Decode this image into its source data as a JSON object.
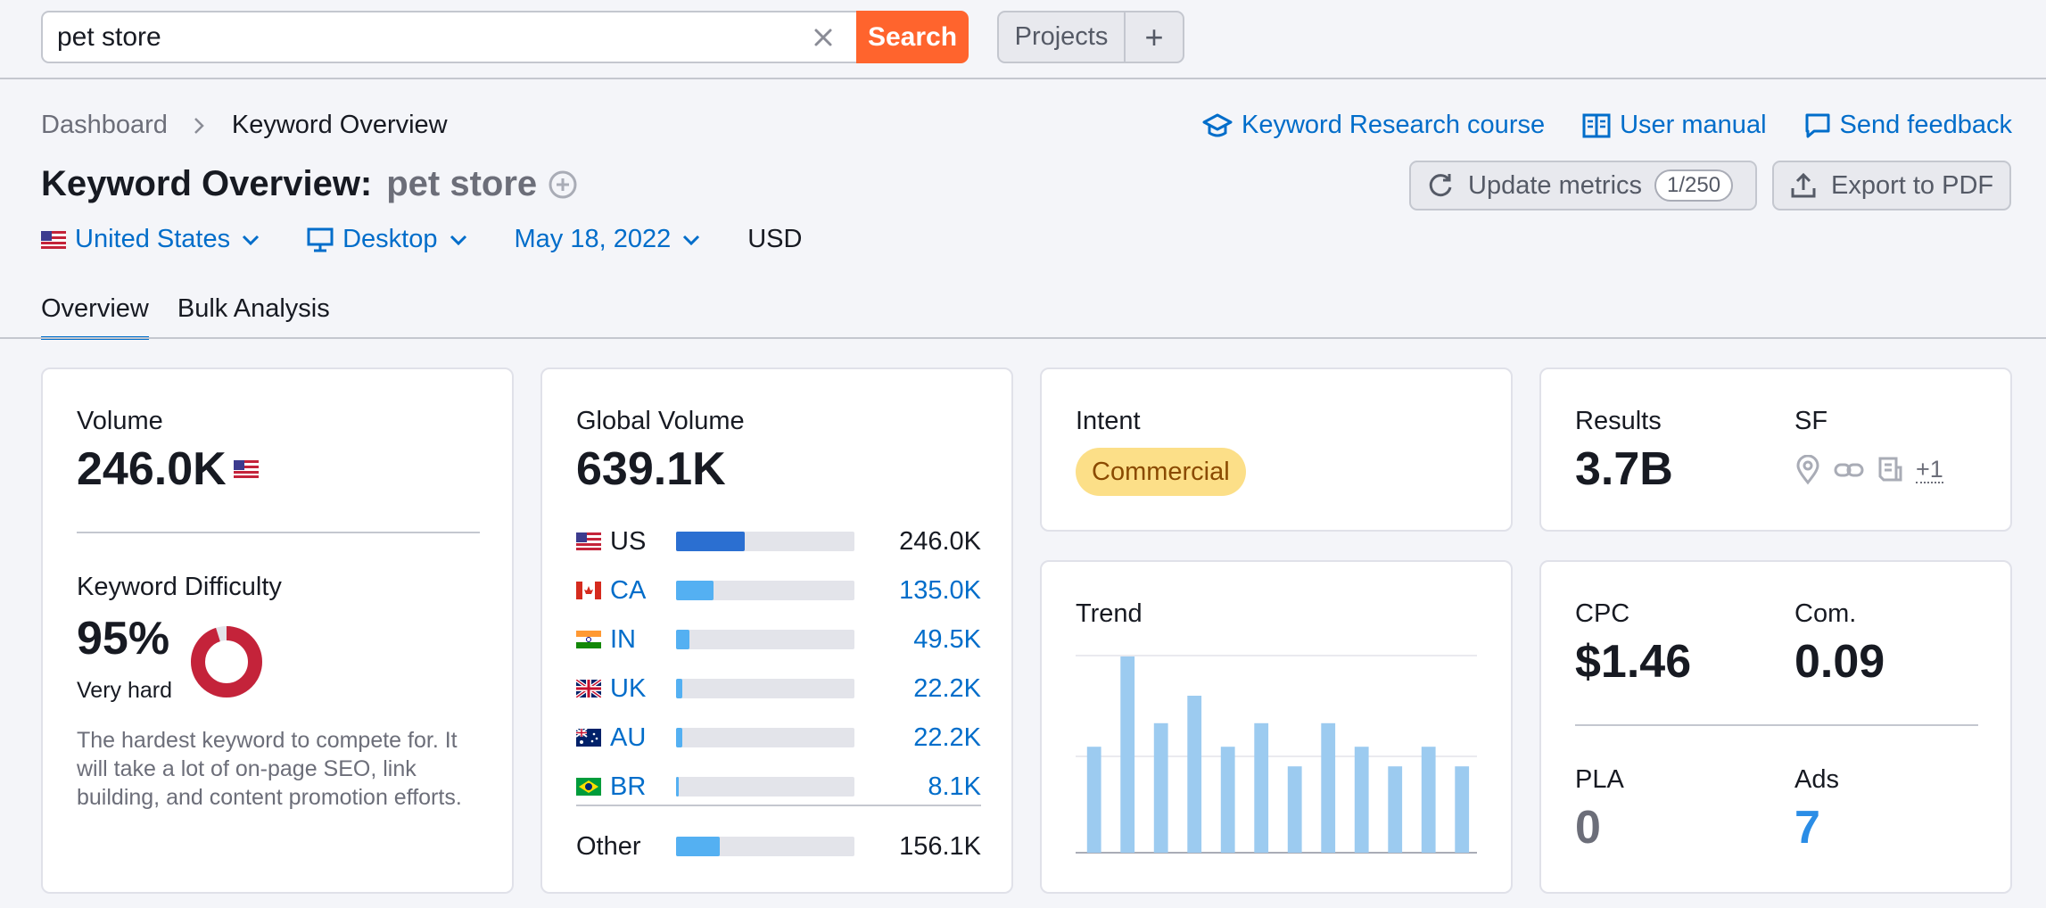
{
  "search": {
    "value": "pet store",
    "button_label": "Search"
  },
  "projects": {
    "label": "Projects",
    "add": "+"
  },
  "breadcrumb": {
    "root": "Dashboard",
    "current": "Keyword Overview"
  },
  "header_links": {
    "course": "Keyword Research course",
    "manual": "User manual",
    "feedback": "Send feedback"
  },
  "title": {
    "prefix": "Keyword Overview:",
    "keyword": "pet store"
  },
  "actions": {
    "update": "Update metrics",
    "update_counter": "1/250",
    "export": "Export to PDF"
  },
  "filters": {
    "country": "United States",
    "device": "Desktop",
    "date": "May 18, 2022",
    "currency": "USD"
  },
  "tabs": [
    "Overview",
    "Bulk Analysis"
  ],
  "volume": {
    "label": "Volume",
    "value": "246.0K"
  },
  "difficulty": {
    "label": "Keyword Difficulty",
    "value": "95%",
    "percent": 95,
    "level": "Very hard",
    "description": "The hardest keyword to compete for. It will take a lot of on-page SEO, link building, and content promotion efforts.",
    "color": "#c4233a"
  },
  "global_volume": {
    "label": "Global Volume",
    "value": "639.1K",
    "rows": [
      {
        "code": "US",
        "value": "246.0K",
        "share": 0.385,
        "flag": "us-flag"
      },
      {
        "code": "CA",
        "value": "135.0K",
        "share": 0.21,
        "flag": "ca-flag"
      },
      {
        "code": "IN",
        "value": "49.5K",
        "share": 0.077,
        "flag": "in-flag"
      },
      {
        "code": "UK",
        "value": "22.2K",
        "share": 0.035,
        "flag": "uk-flag"
      },
      {
        "code": "AU",
        "value": "22.2K",
        "share": 0.035,
        "flag": "au-flag"
      },
      {
        "code": "BR",
        "value": "8.1K",
        "share": 0.013,
        "flag": "br-flag"
      }
    ],
    "other": {
      "label": "Other",
      "value": "156.1K",
      "share": 0.244
    }
  },
  "intent": {
    "label": "Intent",
    "value": "Commercial"
  },
  "trend": {
    "label": "Trend",
    "values": [
      0.54,
      1.0,
      0.66,
      0.8,
      0.54,
      0.66,
      0.44,
      0.66,
      0.54,
      0.44,
      0.54,
      0.44
    ]
  },
  "results": {
    "label": "Results",
    "value": "3.7B"
  },
  "sf": {
    "label": "SF",
    "icons": [
      "location-pin-icon",
      "link-icon",
      "article-icon"
    ],
    "more": "+1"
  },
  "cpc": {
    "label": "CPC",
    "value": "$1.46"
  },
  "competition": {
    "label": "Com.",
    "value": "0.09"
  },
  "pla": {
    "label": "PLA",
    "value": "0"
  },
  "ads": {
    "label": "Ads",
    "value": "7"
  },
  "colors": {
    "accent": "#006dca",
    "search_button": "#ff642d",
    "bar_primary": "#2b6fd1",
    "bar_light": "#54b0f2",
    "trend_bar": "#9ccbf0"
  }
}
